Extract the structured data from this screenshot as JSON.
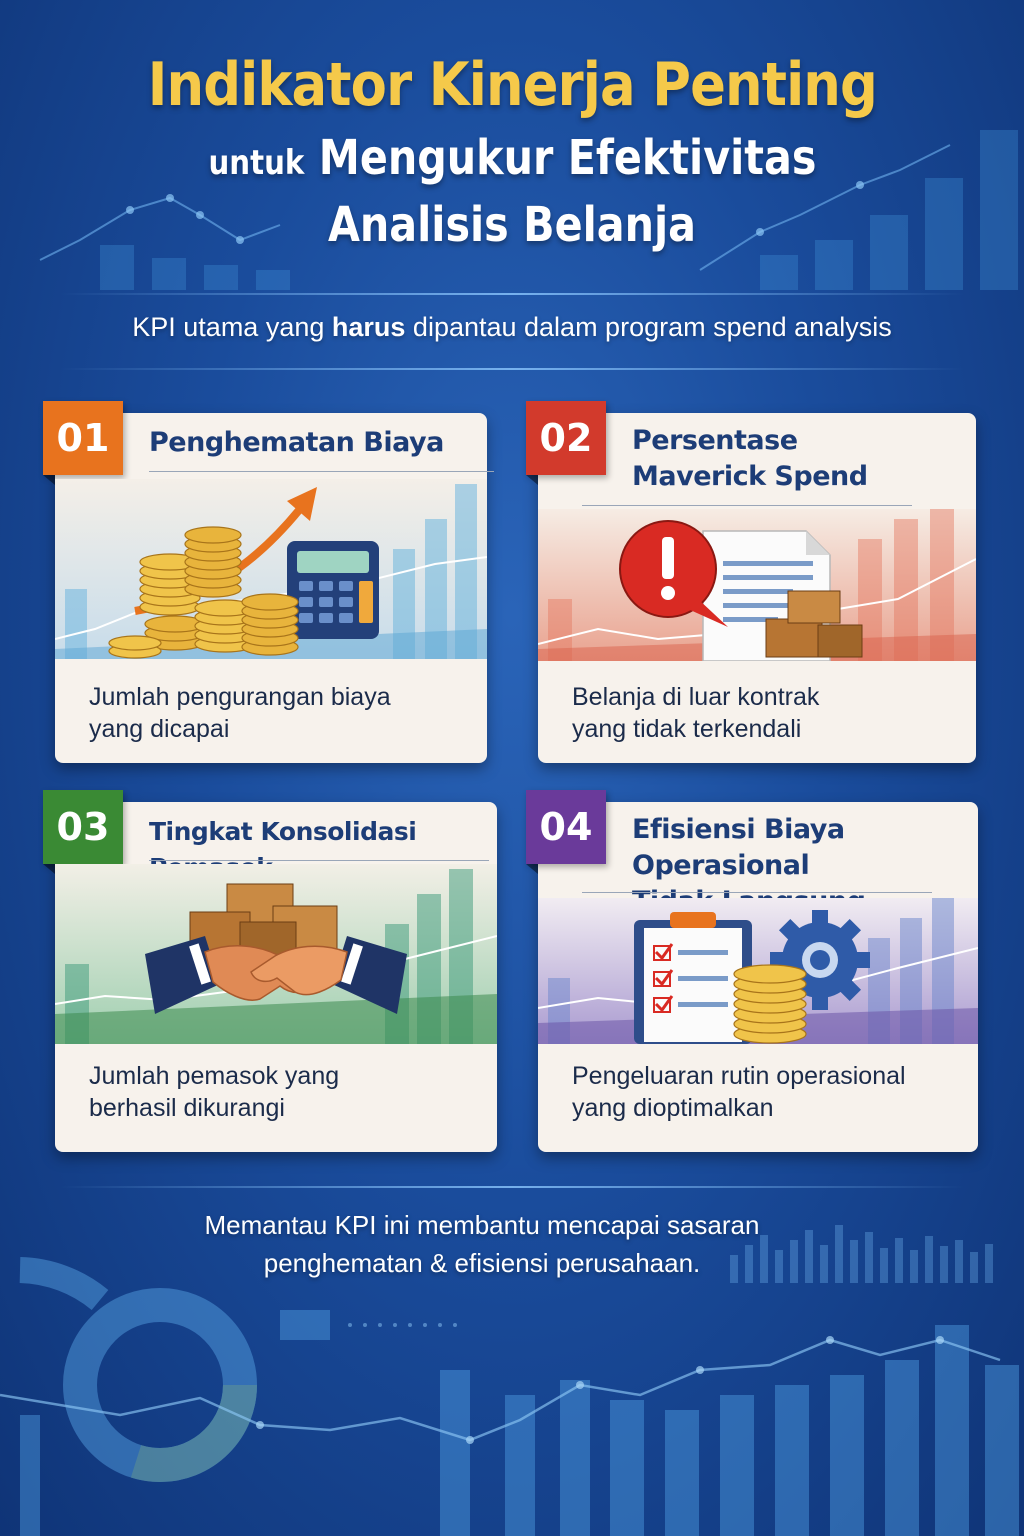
{
  "header": {
    "title": "Indikator Kinerja Penting",
    "subtitle_prefix": "untuk",
    "subtitle_rest": "Mengukur Efektivitas",
    "subtitle_line2": "Analisis Belanja"
  },
  "intro": {
    "before": "KPI utama yang ",
    "bold": "harus",
    "after": " dipantau dalam program spend analysis"
  },
  "cards": [
    {
      "number": "01",
      "title": "Penghematan Biaya",
      "desc_line1": "Jumlah pengurangan biaya",
      "desc_line2": "yang dicapai",
      "badge_color": "#e8731e"
    },
    {
      "number": "02",
      "title_line1": "Persentase",
      "title_line2": "Maverick Spend",
      "desc_line1": "Belanja di luar kontrak",
      "desc_line2": "yang tidak terkendali",
      "badge_color": "#d23a2c"
    },
    {
      "number": "03",
      "title": "Tingkat Konsolidasi Pemasok",
      "desc_line1": "Jumlah pemasok yang",
      "desc_line2": "berhasil dikurangi",
      "badge_color": "#3a8a34"
    },
    {
      "number": "04",
      "title_line1": "Efisiensi Biaya Operasional",
      "title_line2": "Tidak Langsung",
      "desc_line1": "Pengeluaran rutin operasional",
      "desc_line2": "yang dioptimalkan",
      "badge_color": "#6a3a9a"
    }
  ],
  "footer": {
    "line1": "Memantau KPI ini membantu mencapai sasaran",
    "line2": "penghematan & efisiensi perusahaan."
  }
}
